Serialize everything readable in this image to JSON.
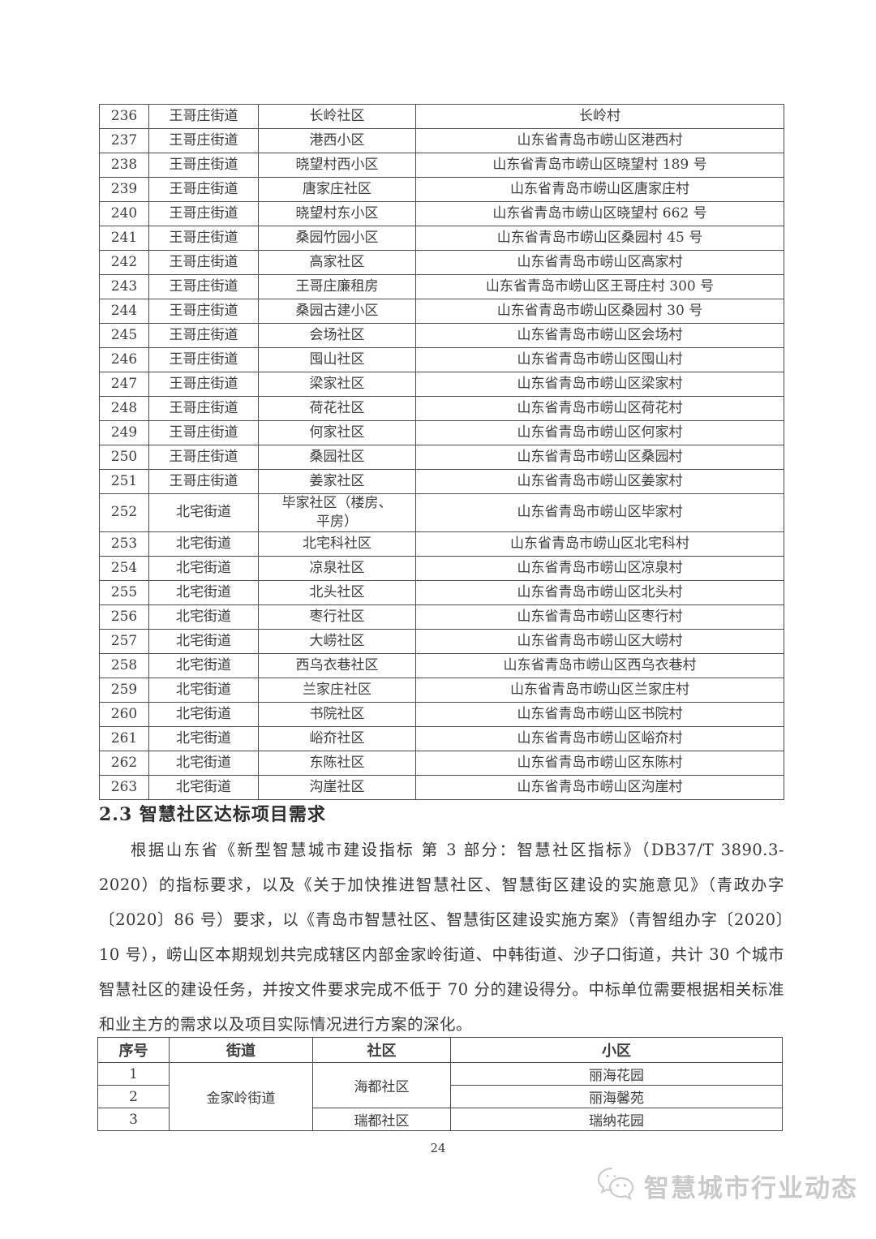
{
  "document": {
    "section_heading": "2.3 智慧社区达标项目需求",
    "paragraph": "根据山东省《新型智慧城市建设指标 第 3 部分：智慧社区指标》（DB37/T 3890.3-2020）的指标要求，以及《关于加快推进智慧社区、智慧街区建设的实施意见》（青政办字〔2020〕86 号）要求，以《青岛市智慧社区、智慧街区建设实施方案》（青智组办字〔2020〕10 号），崂山区本期规划共完成辖区内部金家岭街道、中韩街道、沙子口街道，共计 30 个城市智慧社区的建设任务，并按文件要求完成不低于 70 分的建设得分。中标单位需要根据相关标准和业主方的需求以及项目实际情况进行方案的深化。",
    "page_number": "24"
  },
  "community_table": {
    "rows": [
      {
        "no": "236",
        "street": "王哥庄街道",
        "community": "长岭社区",
        "address": "长岭村"
      },
      {
        "no": "237",
        "street": "王哥庄街道",
        "community": "港西小区",
        "address": "山东省青岛市崂山区港西村"
      },
      {
        "no": "238",
        "street": "王哥庄街道",
        "community": "晓望村西小区",
        "address": "山东省青岛市崂山区晓望村 189 号"
      },
      {
        "no": "239",
        "street": "王哥庄街道",
        "community": "唐家庄社区",
        "address": "山东省青岛市崂山区唐家庄村"
      },
      {
        "no": "240",
        "street": "王哥庄街道",
        "community": "晓望村东小区",
        "address": "山东省青岛市崂山区晓望村 662 号"
      },
      {
        "no": "241",
        "street": "王哥庄街道",
        "community": "桑园竹园小区",
        "address": "山东省青岛市崂山区桑园村 45 号"
      },
      {
        "no": "242",
        "street": "王哥庄街道",
        "community": "高家社区",
        "address": "山东省青岛市崂山区高家村"
      },
      {
        "no": "243",
        "street": "王哥庄街道",
        "community": "王哥庄廉租房",
        "address": "山东省青岛市崂山区王哥庄村 300 号"
      },
      {
        "no": "244",
        "street": "王哥庄街道",
        "community": "桑园古建小区",
        "address": "山东省青岛市崂山区桑园村 30 号"
      },
      {
        "no": "245",
        "street": "王哥庄街道",
        "community": "会场社区",
        "address": "山东省青岛市崂山区会场村"
      },
      {
        "no": "246",
        "street": "王哥庄街道",
        "community": "囤山社区",
        "address": "山东省青岛市崂山区囤山村"
      },
      {
        "no": "247",
        "street": "王哥庄街道",
        "community": "梁家社区",
        "address": "山东省青岛市崂山区梁家村"
      },
      {
        "no": "248",
        "street": "王哥庄街道",
        "community": "荷花社区",
        "address": "山东省青岛市崂山区荷花村"
      },
      {
        "no": "249",
        "street": "王哥庄街道",
        "community": "何家社区",
        "address": "山东省青岛市崂山区何家村"
      },
      {
        "no": "250",
        "street": "王哥庄街道",
        "community": "桑园社区",
        "address": "山东省青岛市崂山区桑园村"
      },
      {
        "no": "251",
        "street": "王哥庄街道",
        "community": "姜家社区",
        "address": "山东省青岛市崂山区姜家村"
      },
      {
        "no": "252",
        "street": "北宅街道",
        "community": "毕家社区（楼房、\n平房）",
        "address": "山东省青岛市崂山区毕家村"
      },
      {
        "no": "253",
        "street": "北宅街道",
        "community": "北宅科社区",
        "address": "山东省青岛市崂山区北宅科村"
      },
      {
        "no": "254",
        "street": "北宅街道",
        "community": "凉泉社区",
        "address": "山东省青岛市崂山区凉泉村"
      },
      {
        "no": "255",
        "street": "北宅街道",
        "community": "北头社区",
        "address": "山东省青岛市崂山区北头村"
      },
      {
        "no": "256",
        "street": "北宅街道",
        "community": "枣行社区",
        "address": "山东省青岛市崂山区枣行村"
      },
      {
        "no": "257",
        "street": "北宅街道",
        "community": "大崂社区",
        "address": "山东省青岛市崂山区大崂村"
      },
      {
        "no": "258",
        "street": "北宅街道",
        "community": "西乌衣巷社区",
        "address": "山东省青岛市崂山区西乌衣巷村"
      },
      {
        "no": "259",
        "street": "北宅街道",
        "community": "兰家庄社区",
        "address": "山东省青岛市崂山区兰家庄村"
      },
      {
        "no": "260",
        "street": "北宅街道",
        "community": "书院社区",
        "address": "山东省青岛市崂山区书院村"
      },
      {
        "no": "261",
        "street": "北宅街道",
        "community": "峪夼社区",
        "address": "山东省青岛市崂山区峪夼村"
      },
      {
        "no": "262",
        "street": "北宅街道",
        "community": "东陈社区",
        "address": "山东省青岛市崂山区东陈村"
      },
      {
        "no": "263",
        "street": "北宅街道",
        "community": "沟崖社区",
        "address": "山东省青岛市崂山区沟崖村"
      }
    ]
  },
  "requirement_table": {
    "headers": [
      "序号",
      "街道",
      "社区",
      "小区"
    ],
    "rows": [
      {
        "no": "1",
        "street": "金家岭街道",
        "street_rowspan": 3,
        "community": "海都社区",
        "community_rowspan": 2,
        "estate": "丽海花园"
      },
      {
        "no": "2",
        "estate": "丽海馨苑"
      },
      {
        "no": "3",
        "community": "瑞都社区",
        "community_rowspan": 1,
        "estate": "瑞纳花园"
      }
    ]
  },
  "footer": {
    "brand": "智慧城市行业动态",
    "logo": "chat-bubbles-icon",
    "brand_color": "#c9c9c9",
    "text_color": "#3d3d3d",
    "border_color": "#4c4c4c"
  }
}
